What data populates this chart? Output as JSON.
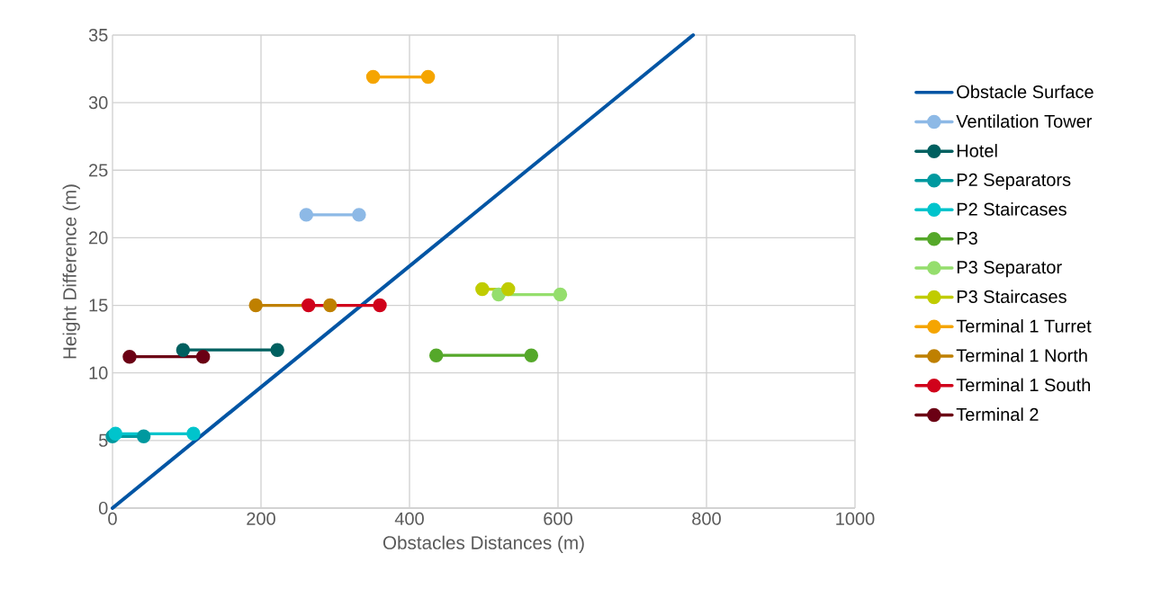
{
  "chart_data": {
    "type": "line",
    "xlabel": "Obstacles Distances (m)",
    "ylabel": "Height Difference (m)",
    "xlim": [
      0,
      1000
    ],
    "ylim": [
      0,
      35
    ],
    "xticks": [
      0,
      200,
      400,
      600,
      800,
      1000
    ],
    "yticks": [
      0,
      5,
      10,
      15,
      20,
      25,
      30,
      35
    ],
    "grid": true,
    "legend": "right",
    "marker": "circle",
    "line_style": "solid",
    "series": [
      {
        "name": "Obstacle Surface",
        "color": "#0055a4",
        "marker": "none",
        "x": [
          0,
          782
        ],
        "values": [
          0,
          35
        ]
      },
      {
        "name": "Ventilation Tower",
        "color": "#8db9e6",
        "x": [
          261,
          332
        ],
        "values": [
          21.7,
          21.7
        ]
      },
      {
        "name": "Hotel",
        "color": "#006060",
        "x": [
          95,
          222
        ],
        "values": [
          11.7,
          11.7
        ]
      },
      {
        "name": "P2 Separators",
        "color": "#00999f",
        "x": [
          0,
          42
        ],
        "values": [
          5.3,
          5.3
        ]
      },
      {
        "name": "P2 Staircases",
        "color": "#00c4cc",
        "x": [
          4,
          109
        ],
        "values": [
          5.5,
          5.5
        ]
      },
      {
        "name": "P3",
        "color": "#55a82a",
        "x": [
          436,
          564
        ],
        "values": [
          11.3,
          11.3
        ]
      },
      {
        "name": "P3 Separator",
        "color": "#95de6d",
        "x": [
          520,
          603
        ],
        "values": [
          15.8,
          15.8
        ]
      },
      {
        "name": "P3 Staircases",
        "color": "#c0cc00",
        "x": [
          498,
          533
        ],
        "values": [
          16.2,
          16.2
        ]
      },
      {
        "name": "Terminal 1 Turret",
        "color": "#f5a500",
        "x": [
          351,
          425
        ],
        "values": [
          31.9,
          31.9
        ]
      },
      {
        "name": "Terminal 1 North",
        "color": "#bf8000",
        "x": [
          193,
          293
        ],
        "values": [
          15.0,
          15.0
        ]
      },
      {
        "name": "Terminal 1 South",
        "color": "#d0021b",
        "x": [
          264,
          360
        ],
        "values": [
          15.0,
          15.0
        ]
      },
      {
        "name": "Terminal 2",
        "color": "#6b0014",
        "x": [
          23,
          122
        ],
        "values": [
          11.2,
          11.2
        ]
      }
    ]
  }
}
